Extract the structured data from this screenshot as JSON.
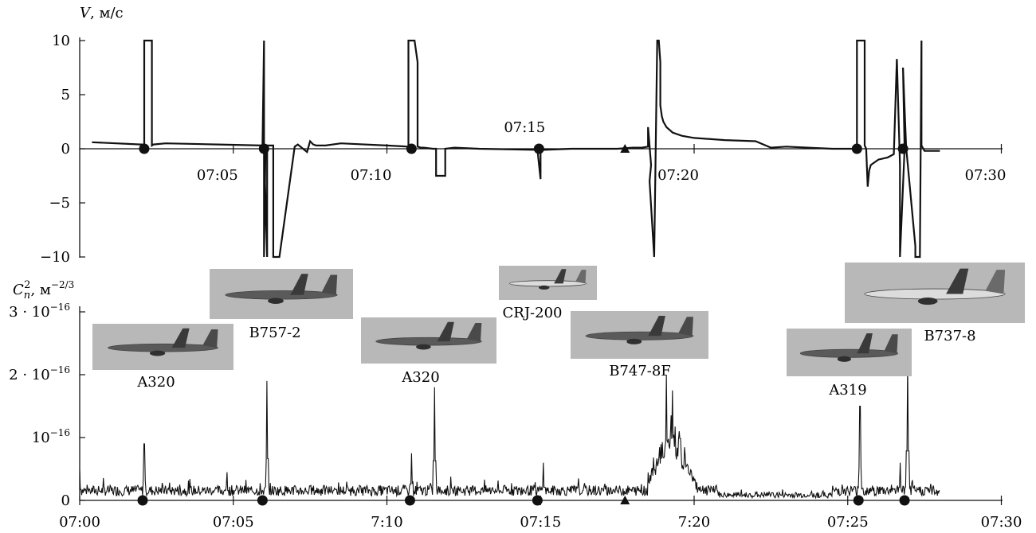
{
  "chart_data": [
    {
      "type": "line",
      "ylabel_symbol": "V",
      "ylabel_unit": ", м/с",
      "ylim": [
        -10,
        10
      ],
      "yticks": [
        {
          "v": 10,
          "label": "10"
        },
        {
          "v": 5,
          "label": "5"
        },
        {
          "v": 0,
          "label": "0"
        },
        {
          "v": -5,
          "label": "−5"
        },
        {
          "v": -10,
          "label": "−10"
        }
      ],
      "xlim_minutes": [
        0,
        30.2
      ],
      "xticks": [
        {
          "m": 5,
          "label": "07:05"
        },
        {
          "m": 10,
          "label": "07:10"
        },
        {
          "m": 15,
          "label": "07:15",
          "above": true
        },
        {
          "m": 20,
          "label": "07:20"
        },
        {
          "m": 30,
          "label": "07:30"
        }
      ],
      "event_markers_min": [
        2.1,
        6.0,
        10.8,
        14.95,
        25.3,
        26.8
      ],
      "triangle_marker_min": 17.75,
      "series": [
        {
          "x": [
            0.4,
            2.0,
            2.05,
            2.1,
            2.1,
            2.35,
            2.35,
            2.4,
            2.8,
            4.5,
            5.95,
            6.0,
            6.0,
            6.05,
            6.0,
            6.1,
            6.1,
            6.3,
            6.3,
            6.5,
            7.0,
            7.1,
            7.4,
            7.5,
            7.6,
            7.7,
            8.0,
            8.5,
            10.0,
            10.7,
            10.7,
            10.9,
            11.0,
            11.0,
            11.1,
            11.2,
            11.5,
            11.6,
            11.6,
            11.9,
            11.9,
            12.2,
            13.0,
            14.9,
            15.0,
            15.0,
            15.05,
            15.1,
            16.0,
            17.5,
            18.0,
            18.3,
            18.5,
            18.5,
            18.6,
            18.55,
            18.7,
            18.8,
            18.85,
            18.9,
            18.9,
            18.95,
            19.0,
            19.1,
            19.3,
            19.6,
            20.0,
            21.0,
            22.0,
            22.5,
            23.0,
            24.5,
            25.3,
            25.3,
            25.55,
            25.55,
            25.6,
            25.65,
            25.7,
            25.75,
            26.0,
            26.3,
            26.5,
            26.6,
            26.7,
            26.7,
            26.85,
            26.8,
            26.9,
            27.2,
            27.2,
            27.35,
            27.4,
            27.4,
            27.5,
            28.0
          ],
          "y": [
            0.6,
            0.4,
            0.4,
            0.3,
            10,
            10,
            0.3,
            0.4,
            0.5,
            0.4,
            0.3,
            10,
            -10,
            0.3,
            0.2,
            -10,
            0.3,
            0.3,
            -10,
            -10,
            0.2,
            0.4,
            -0.3,
            0.7,
            0.4,
            0.3,
            0.3,
            0.5,
            0.3,
            0.2,
            10,
            10,
            8.0,
            0.2,
            0.1,
            0.1,
            0.0,
            0.0,
            -2.5,
            -2.5,
            0.0,
            0.1,
            0.0,
            -0.1,
            -2.8,
            0.0,
            0.0,
            -0.1,
            0.0,
            0.0,
            0.1,
            0.1,
            0.2,
            2.0,
            -1.5,
            -3.0,
            -10,
            10,
            10,
            8.0,
            4.0,
            3.0,
            2.5,
            2.0,
            1.5,
            1.2,
            1.0,
            0.8,
            0.7,
            0.1,
            0.2,
            0.0,
            0.0,
            10,
            10,
            0.3,
            0.0,
            -3.5,
            -2.0,
            -1.5,
            -1.0,
            -0.8,
            -0.5,
            8.3,
            -1.5,
            -10,
            0.0,
            7.5,
            0.2,
            -9.0,
            -10,
            -10,
            10,
            0.3,
            -0.2,
            -0.2
          ]
        }
      ]
    },
    {
      "type": "line",
      "ylabel_symbol": "C",
      "ylabel_sub": "n",
      "ylabel_sup": "2",
      "ylabel_unit": ", м",
      "ylabel_unit_exp": "−2/3",
      "ylim": [
        0,
        3.15e-16
      ],
      "yticks": [
        {
          "v": 3e-16,
          "label": "3 · 10",
          "exp": "−16"
        },
        {
          "v": 2e-16,
          "label": "2 · 10",
          "exp": "−16"
        },
        {
          "v": 1e-16,
          "label": "10",
          "exp": "−16"
        },
        {
          "v": 0,
          "label": "0",
          "exp": ""
        }
      ],
      "xlim_minutes": [
        0,
        30.2
      ],
      "xticks": [
        {
          "m": 0,
          "label": "07:00"
        },
        {
          "m": 5,
          "label": "07:05"
        },
        {
          "m": 10,
          "label": "7:10"
        },
        {
          "m": 15,
          "label": "07:15"
        },
        {
          "m": 20,
          "label": "7:20"
        },
        {
          "m": 25,
          "label": "07:25"
        },
        {
          "m": 30,
          "label": "07:30"
        }
      ],
      "event_markers_min": [
        2.05,
        5.95,
        10.75,
        14.9,
        25.35,
        26.85
      ],
      "triangle_marker_min": 17.75,
      "baseline_ylevel": 1.6e-17,
      "end_minute": 28.0,
      "peaks": [
        {
          "m": 0.0,
          "v": 5e-17
        },
        {
          "m": 2.1,
          "v": 9e-17
        },
        {
          "m": 4.8,
          "v": 4.5e-17
        },
        {
          "m": 6.1,
          "v": 1.9e-16
        },
        {
          "m": 10.8,
          "v": 7.5e-17
        },
        {
          "m": 11.55,
          "v": 1.8e-16
        },
        {
          "m": 15.1,
          "v": 6e-17
        },
        {
          "m": 19.1,
          "v": 2e-16
        },
        {
          "m": 19.3,
          "v": 1.75e-16
        },
        {
          "m": 25.4,
          "v": 1.5e-16
        },
        {
          "m": 26.95,
          "v": 2.25e-16
        },
        {
          "m": 26.7,
          "v": 6e-17
        }
      ],
      "hump": {
        "from": 18.5,
        "to": 20.3,
        "peak_m": 19.25,
        "v": 1.25e-16
      }
    }
  ],
  "aircraft": [
    {
      "label": "A320",
      "kind": "s7"
    },
    {
      "label": "B757-2",
      "kind": "s7"
    },
    {
      "label": "A320",
      "kind": "s7"
    },
    {
      "label": "CRJ-200",
      "kind": "white"
    },
    {
      "label": "B747-8F",
      "kind": "jumbo"
    },
    {
      "label": "A319",
      "kind": "s7"
    },
    {
      "label": "B737-8",
      "kind": "white"
    }
  ],
  "colors": {
    "line": "#111111",
    "photo_bg": "#b8b8b8",
    "photo_plane": "#5a5a5a"
  }
}
